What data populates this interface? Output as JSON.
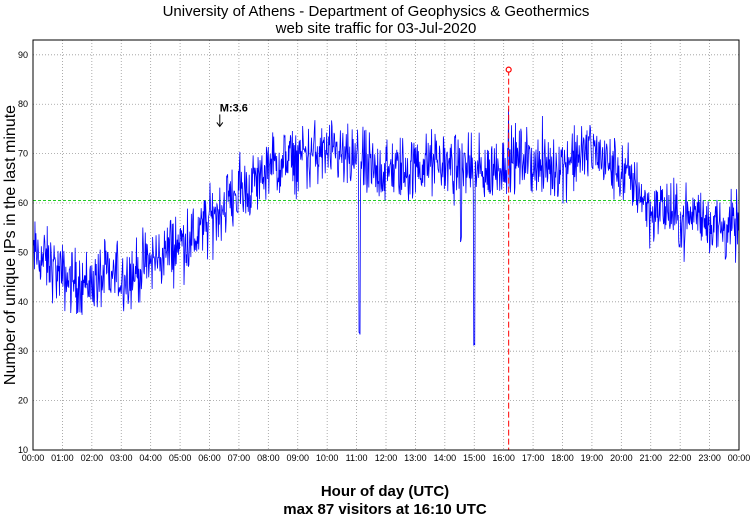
{
  "chart_data": {
    "type": "line",
    "title": "University of Athens - Department of Geophysics & Geothermics",
    "subtitle": "web site traffic for 03-Jul-2020",
    "xlabel": "Hour of day (UTC)",
    "ylabel": "Number of unique IPs in the last minute",
    "footer": "max 87 visitors at 16:10 UTC",
    "x_ticks": [
      "00:00",
      "01:00",
      "02:00",
      "03:00",
      "04:00",
      "05:00",
      "06:00",
      "07:00",
      "08:00",
      "09:00",
      "10:00",
      "11:00",
      "12:00",
      "13:00",
      "14:00",
      "15:00",
      "16:00",
      "17:00",
      "18:00",
      "19:00",
      "20:00",
      "21:00",
      "22:00",
      "23:00",
      "00:00"
    ],
    "y_ticks": [
      10,
      20,
      30,
      40,
      50,
      60,
      70,
      80,
      90
    ],
    "xlim_hours": [
      0,
      24
    ],
    "ylim": [
      10,
      93
    ],
    "grid": true,
    "mean_line": {
      "value": 60.5,
      "color": "#22cc22"
    },
    "max_marker": {
      "time_hours": 16.17,
      "value": 87,
      "color": "#ff0000"
    },
    "annotation": {
      "label": "M:3.6",
      "time_hours": 6.35,
      "value": 75.5
    },
    "series": [
      {
        "color": "#0000ff",
        "hourly_profile": {
          "hours": [
            0,
            0.5,
            1,
            1.5,
            2,
            2.5,
            3,
            3.5,
            4,
            4.5,
            5,
            5.5,
            6,
            6.5,
            7,
            7.5,
            8,
            8.5,
            9,
            9.5,
            10,
            10.5,
            11,
            11.5,
            12,
            12.5,
            13,
            13.5,
            14,
            14.5,
            15,
            15.5,
            16,
            16.5,
            17,
            17.5,
            18,
            18.5,
            19,
            19.5,
            20,
            20.5,
            21,
            21.5,
            22,
            22.5,
            23,
            23.5,
            24
          ],
          "values": [
            50,
            48,
            45,
            44,
            44,
            45,
            45,
            46,
            48,
            50,
            52,
            53,
            56,
            60,
            62,
            64,
            67,
            68,
            69,
            70,
            70,
            69,
            68,
            67,
            66,
            67,
            67,
            68,
            68,
            67,
            66,
            66,
            68,
            69,
            68,
            67,
            68,
            69,
            71,
            68,
            66,
            64,
            58,
            59,
            56,
            58,
            56,
            55,
            55
          ]
        },
        "noise_amplitude": 5,
        "dips": [
          {
            "time_hours": 11.1,
            "value": 33
          },
          {
            "time_hours": 15.0,
            "value": 30
          },
          {
            "time_hours": 14.55,
            "value": 52
          }
        ]
      }
    ]
  }
}
